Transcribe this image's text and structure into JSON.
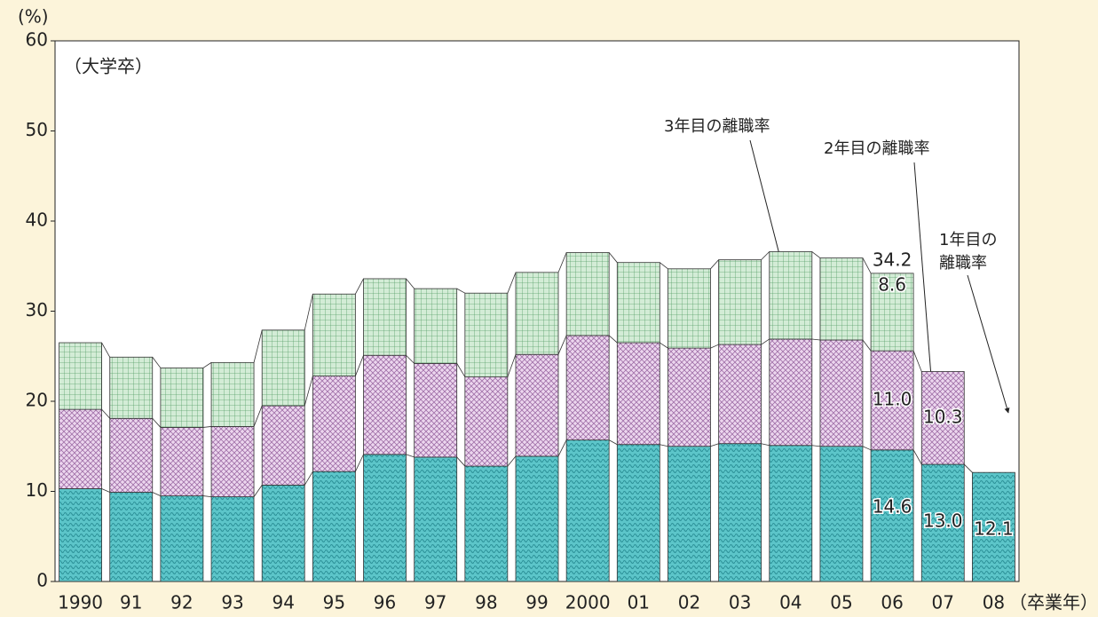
{
  "chart_data": {
    "type": "stacked_bar",
    "y_unit": "(%)",
    "x_unit": "（卒業年）",
    "inner_label": "（大学卒）",
    "categories": [
      "1990",
      "91",
      "92",
      "93",
      "94",
      "95",
      "96",
      "97",
      "98",
      "99",
      "2000",
      "01",
      "02",
      "03",
      "04",
      "05",
      "06",
      "07",
      "08"
    ],
    "series": [
      {
        "name": "1年目の\n離職率",
        "color": "#5cc5c9",
        "values": [
          10.3,
          9.9,
          9.5,
          9.4,
          10.7,
          12.2,
          14.1,
          13.8,
          12.8,
          13.9,
          15.7,
          15.2,
          15.0,
          15.3,
          15.1,
          15.0,
          14.6,
          13.0,
          12.1
        ],
        "value_labels": [
          null,
          null,
          null,
          null,
          null,
          null,
          null,
          null,
          null,
          null,
          null,
          null,
          null,
          null,
          null,
          null,
          "14.6",
          "13.0",
          "12.1"
        ]
      },
      {
        "name": "2年目の離職率",
        "color": "#ecd6ee",
        "values": [
          8.8,
          8.2,
          7.6,
          7.8,
          8.8,
          10.6,
          11.0,
          10.4,
          9.9,
          11.3,
          11.6,
          11.3,
          10.9,
          11.0,
          11.8,
          11.8,
          11.0,
          10.3,
          null
        ],
        "value_labels": [
          null,
          null,
          null,
          null,
          null,
          null,
          null,
          null,
          null,
          null,
          null,
          null,
          null,
          null,
          null,
          null,
          "11.0",
          "10.3",
          null
        ]
      },
      {
        "name": "3年目の離職率",
        "color": "#d3ecd6",
        "values": [
          7.4,
          6.8,
          6.6,
          7.1,
          8.4,
          9.1,
          8.5,
          8.3,
          9.3,
          9.1,
          9.2,
          8.9,
          8.8,
          9.4,
          9.7,
          9.1,
          8.6,
          null,
          null
        ],
        "value_labels": [
          null,
          null,
          null,
          null,
          null,
          null,
          null,
          null,
          null,
          null,
          null,
          null,
          null,
          null,
          null,
          null,
          "8.6",
          null,
          null
        ]
      }
    ],
    "annotations": [
      "34.2"
    ],
    "ylim": [
      0,
      60
    ],
    "yticks": [
      0,
      10,
      20,
      30,
      40,
      50,
      60
    ],
    "grid": false
  }
}
